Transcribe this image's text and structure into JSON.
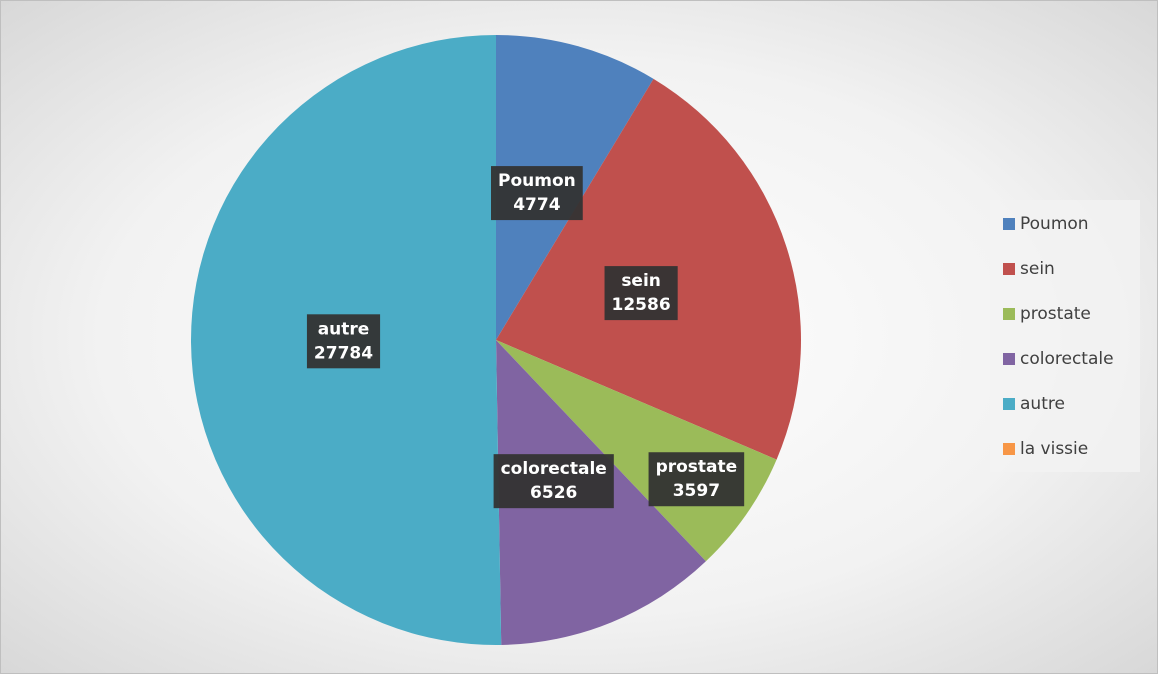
{
  "chart_data": {
    "type": "pie",
    "categories": [
      "Poumon",
      "sein",
      "prostate",
      "colorectale",
      "autre",
      "la vissie"
    ],
    "values": [
      4774,
      12586,
      3597,
      6526,
      27784,
      0
    ],
    "colors": [
      "#4f81bd",
      "#c0504d",
      "#9bbb59",
      "#8064a2",
      "#4bacc6",
      "#f79646"
    ],
    "legend": "right"
  }
}
